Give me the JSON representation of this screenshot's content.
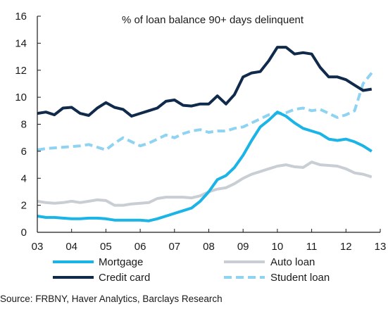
{
  "chart_data": {
    "type": "line",
    "title": "% of loan balance 90+ days delinquent",
    "xlabel": "",
    "ylabel": "",
    "xlim": [
      2003,
      2013
    ],
    "ylim": [
      0,
      16
    ],
    "x_ticks": [
      {
        "value": 2003,
        "label": "03"
      },
      {
        "value": 2004,
        "label": "04"
      },
      {
        "value": 2005,
        "label": "05"
      },
      {
        "value": 2006,
        "label": "06"
      },
      {
        "value": 2007,
        "label": "07"
      },
      {
        "value": 2008,
        "label": "08"
      },
      {
        "value": 2009,
        "label": "09"
      },
      {
        "value": 2010,
        "label": "10"
      },
      {
        "value": 2011,
        "label": "11"
      },
      {
        "value": 2012,
        "label": "12"
      },
      {
        "value": 2013,
        "label": "13"
      }
    ],
    "y_ticks": [
      0,
      2,
      4,
      6,
      8,
      10,
      12,
      14,
      16
    ],
    "grid": false,
    "legend_position": "bottom",
    "series": [
      {
        "name": "Mortgage",
        "color": "#1ab4e6",
        "style": "solid",
        "x": [
          2003.0,
          2003.25,
          2003.5,
          2003.75,
          2004.0,
          2004.25,
          2004.5,
          2004.75,
          2005.0,
          2005.25,
          2005.5,
          2005.75,
          2006.0,
          2006.25,
          2006.5,
          2006.75,
          2007.0,
          2007.25,
          2007.5,
          2007.75,
          2008.0,
          2008.25,
          2008.5,
          2008.75,
          2009.0,
          2009.25,
          2009.5,
          2009.75,
          2010.0,
          2010.25,
          2010.5,
          2010.75,
          2011.0,
          2011.25,
          2011.5,
          2011.75,
          2012.0,
          2012.25,
          2012.5,
          2012.75
        ],
        "values": [
          1.2,
          1.1,
          1.1,
          1.05,
          1.0,
          1.0,
          1.05,
          1.05,
          1.0,
          0.9,
          0.9,
          0.9,
          0.9,
          0.85,
          1.0,
          1.2,
          1.4,
          1.6,
          1.8,
          2.3,
          3.0,
          3.9,
          4.2,
          4.8,
          5.7,
          6.8,
          7.8,
          8.3,
          8.9,
          8.6,
          8.1,
          7.7,
          7.5,
          7.3,
          6.9,
          6.8,
          6.9,
          6.7,
          6.4,
          6.0
        ]
      },
      {
        "name": "Auto loan",
        "color": "#c8ced3",
        "style": "solid",
        "x": [
          2003.0,
          2003.25,
          2003.5,
          2003.75,
          2004.0,
          2004.25,
          2004.5,
          2004.75,
          2005.0,
          2005.25,
          2005.5,
          2005.75,
          2006.0,
          2006.25,
          2006.5,
          2006.75,
          2007.0,
          2007.25,
          2007.5,
          2007.75,
          2008.0,
          2008.25,
          2008.5,
          2008.75,
          2009.0,
          2009.25,
          2009.5,
          2009.75,
          2010.0,
          2010.25,
          2010.5,
          2010.75,
          2011.0,
          2011.25,
          2011.5,
          2011.75,
          2012.0,
          2012.25,
          2012.5,
          2012.75
        ],
        "values": [
          2.3,
          2.2,
          2.15,
          2.2,
          2.3,
          2.2,
          2.3,
          2.4,
          2.35,
          2.0,
          2.0,
          2.1,
          2.15,
          2.2,
          2.5,
          2.6,
          2.6,
          2.6,
          2.55,
          2.7,
          3.0,
          3.2,
          3.3,
          3.6,
          4.0,
          4.3,
          4.5,
          4.7,
          4.9,
          5.0,
          4.85,
          4.8,
          5.2,
          5.0,
          4.95,
          4.9,
          4.7,
          4.4,
          4.3,
          4.1
        ]
      },
      {
        "name": "Credit card",
        "color": "#0f2a4a",
        "style": "solid",
        "x": [
          2003.0,
          2003.25,
          2003.5,
          2003.75,
          2004.0,
          2004.25,
          2004.5,
          2004.75,
          2005.0,
          2005.25,
          2005.5,
          2005.75,
          2006.0,
          2006.25,
          2006.5,
          2006.75,
          2007.0,
          2007.25,
          2007.5,
          2007.75,
          2008.0,
          2008.25,
          2008.5,
          2008.75,
          2009.0,
          2009.25,
          2009.5,
          2009.75,
          2010.0,
          2010.25,
          2010.5,
          2010.75,
          2011.0,
          2011.25,
          2011.5,
          2011.75,
          2012.0,
          2012.25,
          2012.5,
          2012.75
        ],
        "values": [
          8.8,
          8.9,
          8.7,
          9.2,
          9.25,
          8.8,
          8.65,
          9.2,
          9.6,
          9.25,
          9.1,
          8.6,
          8.8,
          9.0,
          9.2,
          9.7,
          9.8,
          9.4,
          9.35,
          9.5,
          9.5,
          10.1,
          9.5,
          10.2,
          11.5,
          11.8,
          11.9,
          12.7,
          13.7,
          13.7,
          13.2,
          13.3,
          13.2,
          12.2,
          11.5,
          11.5,
          11.3,
          10.9,
          10.5,
          10.6
        ]
      },
      {
        "name": "Student loan",
        "color": "#8fd3f2",
        "style": "dashed",
        "x": [
          2003.0,
          2003.25,
          2003.5,
          2003.75,
          2004.0,
          2004.25,
          2004.5,
          2004.75,
          2005.0,
          2005.25,
          2005.5,
          2005.75,
          2006.0,
          2006.25,
          2006.5,
          2006.75,
          2007.0,
          2007.25,
          2007.5,
          2007.75,
          2008.0,
          2008.25,
          2008.5,
          2008.75,
          2009.0,
          2009.25,
          2009.5,
          2009.75,
          2010.0,
          2010.25,
          2010.5,
          2010.75,
          2011.0,
          2011.25,
          2011.5,
          2011.75,
          2012.0,
          2012.25,
          2012.5,
          2012.75
        ],
        "values": [
          6.1,
          6.2,
          6.25,
          6.3,
          6.35,
          6.4,
          6.5,
          6.3,
          6.1,
          6.6,
          7.0,
          6.7,
          6.4,
          6.6,
          6.9,
          7.2,
          7.0,
          7.3,
          7.5,
          7.6,
          7.4,
          7.5,
          7.5,
          7.7,
          7.8,
          8.1,
          8.4,
          8.7,
          8.8,
          8.85,
          9.1,
          9.2,
          9.0,
          9.1,
          8.8,
          8.5,
          8.7,
          9.0,
          11.0,
          11.8
        ]
      }
    ]
  },
  "source_text": "Source: FRBNY, Haver Analytics, Barclays Research"
}
